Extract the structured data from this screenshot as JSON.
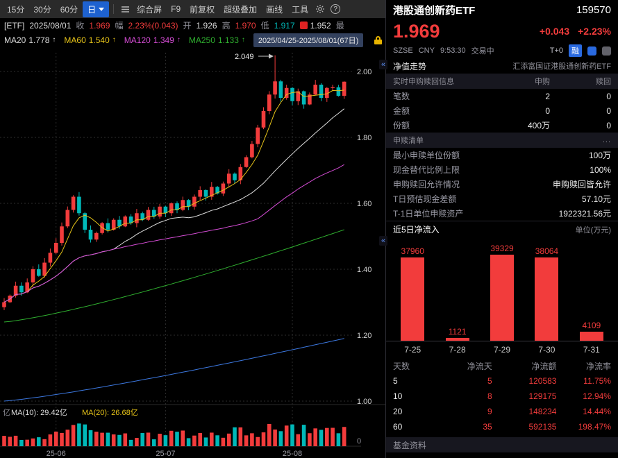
{
  "toolbar": {
    "periods": [
      "15分",
      "30分",
      "60分"
    ],
    "period_selected": "日",
    "buttons": [
      "综合屏",
      "F9",
      "前复权",
      "超级叠加",
      "画线",
      "工具"
    ],
    "help_glyph": "?"
  },
  "icons": {
    "collapse": "«"
  },
  "quote": {
    "tag": "[ETF]",
    "date": "2025/08/01",
    "close_label": "收",
    "close": "1.969",
    "chg_label": "幅",
    "chg": "2.23%(0.043)",
    "open_label": "开",
    "open": "1.926",
    "high_label": "高",
    "high": "1.970",
    "low_label": "低",
    "low": "1.917",
    "avg": "1.952",
    "truncated": "最"
  },
  "ma_bar": {
    "items": [
      {
        "label": "MA20",
        "value": "1.778",
        "arrow": "↑",
        "color": "#dcdcdc"
      },
      {
        "label": "MA60",
        "value": "1.540",
        "arrow": "↑",
        "color": "#e6c319"
      },
      {
        "label": "MA120",
        "value": "1.349",
        "arrow": "↑",
        "color": "#d44cd4"
      },
      {
        "label": "MA250",
        "value": "1.133",
        "arrow": "↑",
        "color": "#2faf2f"
      }
    ],
    "range": "2025/04/25-2025/08/01(67日)"
  },
  "volume_labels": {
    "truncated_prefix": "亿",
    "ma10": "MA(10): 29.42亿",
    "ma20": "MA(20): 26.68亿",
    "zero": "0"
  },
  "chart_data": [
    {
      "type": "candlestick",
      "y_ticks": [
        2.0,
        1.8,
        1.6,
        1.4,
        1.2,
        1.0
      ],
      "x_labels": [
        "25-06",
        "25-07",
        "25-08"
      ],
      "month_tick_indices": [
        9,
        28,
        50
      ],
      "peak_index": 47,
      "peak_value": 2.049,
      "last": {
        "open": 1.926,
        "high": 1.97,
        "low": 1.917,
        "close": 1.969
      },
      "closes": [
        1.3,
        1.32,
        1.35,
        1.33,
        1.36,
        1.4,
        1.38,
        1.42,
        1.45,
        1.48,
        1.53,
        1.58,
        1.62,
        1.57,
        1.52,
        1.49,
        1.51,
        1.54,
        1.52,
        1.55,
        1.53,
        1.56,
        1.54,
        1.57,
        1.55,
        1.58,
        1.56,
        1.59,
        1.57,
        1.6,
        1.58,
        1.61,
        1.59,
        1.62,
        1.64,
        1.62,
        1.65,
        1.63,
        1.66,
        1.69,
        1.67,
        1.71,
        1.74,
        1.78,
        1.83,
        1.88,
        1.93,
        1.97,
        1.92,
        1.95,
        1.91,
        1.94,
        1.9,
        1.93,
        1.96,
        1.92,
        1.95,
        1.952,
        1.926,
        1.969
      ],
      "ma_targets": {
        "MA20": 1.778,
        "MA60": 1.54,
        "MA120": 1.349,
        "MA250": 1.133
      },
      "up_color": "#f23c3c",
      "down_color": "#00b8b8"
    },
    {
      "type": "bar",
      "title": "近5日净流入",
      "unit": "单位(万元)",
      "categories": [
        "7-25",
        "7-28",
        "7-29",
        "7-30",
        "7-31"
      ],
      "values": [
        37960,
        1121,
        39329,
        38064,
        4109
      ],
      "bar_color": "#f23c3c"
    }
  ],
  "panel": {
    "name": "港股通创新药ETF",
    "code": "159570",
    "price": "1.969",
    "change": "+0.043",
    "change_pct": "+2.23%",
    "exchange": "SZSE",
    "currency": "CNY",
    "time": "9:53:30",
    "status": "交易中",
    "badges": [
      "T+0",
      "融"
    ],
    "nav_link": "净值走势",
    "fund_full_name": "汇添富国证港股通创新药ETF",
    "subscription": {
      "title": "实时申购赎回信息",
      "col_sub": "申购",
      "col_red": "赎回",
      "rows": [
        {
          "label": "笔数",
          "sub": "2",
          "red": "0"
        },
        {
          "label": "金额",
          "sub": "0",
          "red": "0"
        },
        {
          "label": "份额",
          "sub": "400万",
          "red": "0"
        }
      ]
    },
    "pcf": {
      "title": "申赎清单",
      "more": "...",
      "rows": [
        {
          "label": "最小申赎单位份额",
          "value": "100万"
        },
        {
          "label": "现金替代比例上限",
          "value": "100%"
        },
        {
          "label": "申购赎回允许情况",
          "value": "申购赎回皆允许"
        },
        {
          "label": "T日预估现金差额",
          "value": "57.10元"
        },
        {
          "label": "T-1日单位申赎资产",
          "value": "1922321.56元"
        }
      ]
    },
    "flow": {
      "title": "近5日净流入",
      "unit": "单位(万元)",
      "table": {
        "headers": [
          "天数",
          "净流天",
          "净流额",
          "净流率"
        ],
        "rows": [
          [
            "5",
            "5",
            "120583",
            "11.75%"
          ],
          [
            "10",
            "8",
            "129175",
            "12.94%"
          ],
          [
            "20",
            "9",
            "148234",
            "14.44%"
          ],
          [
            "60",
            "35",
            "592135",
            "198.47%"
          ]
        ]
      }
    },
    "bottom_partial": "基金资料"
  }
}
